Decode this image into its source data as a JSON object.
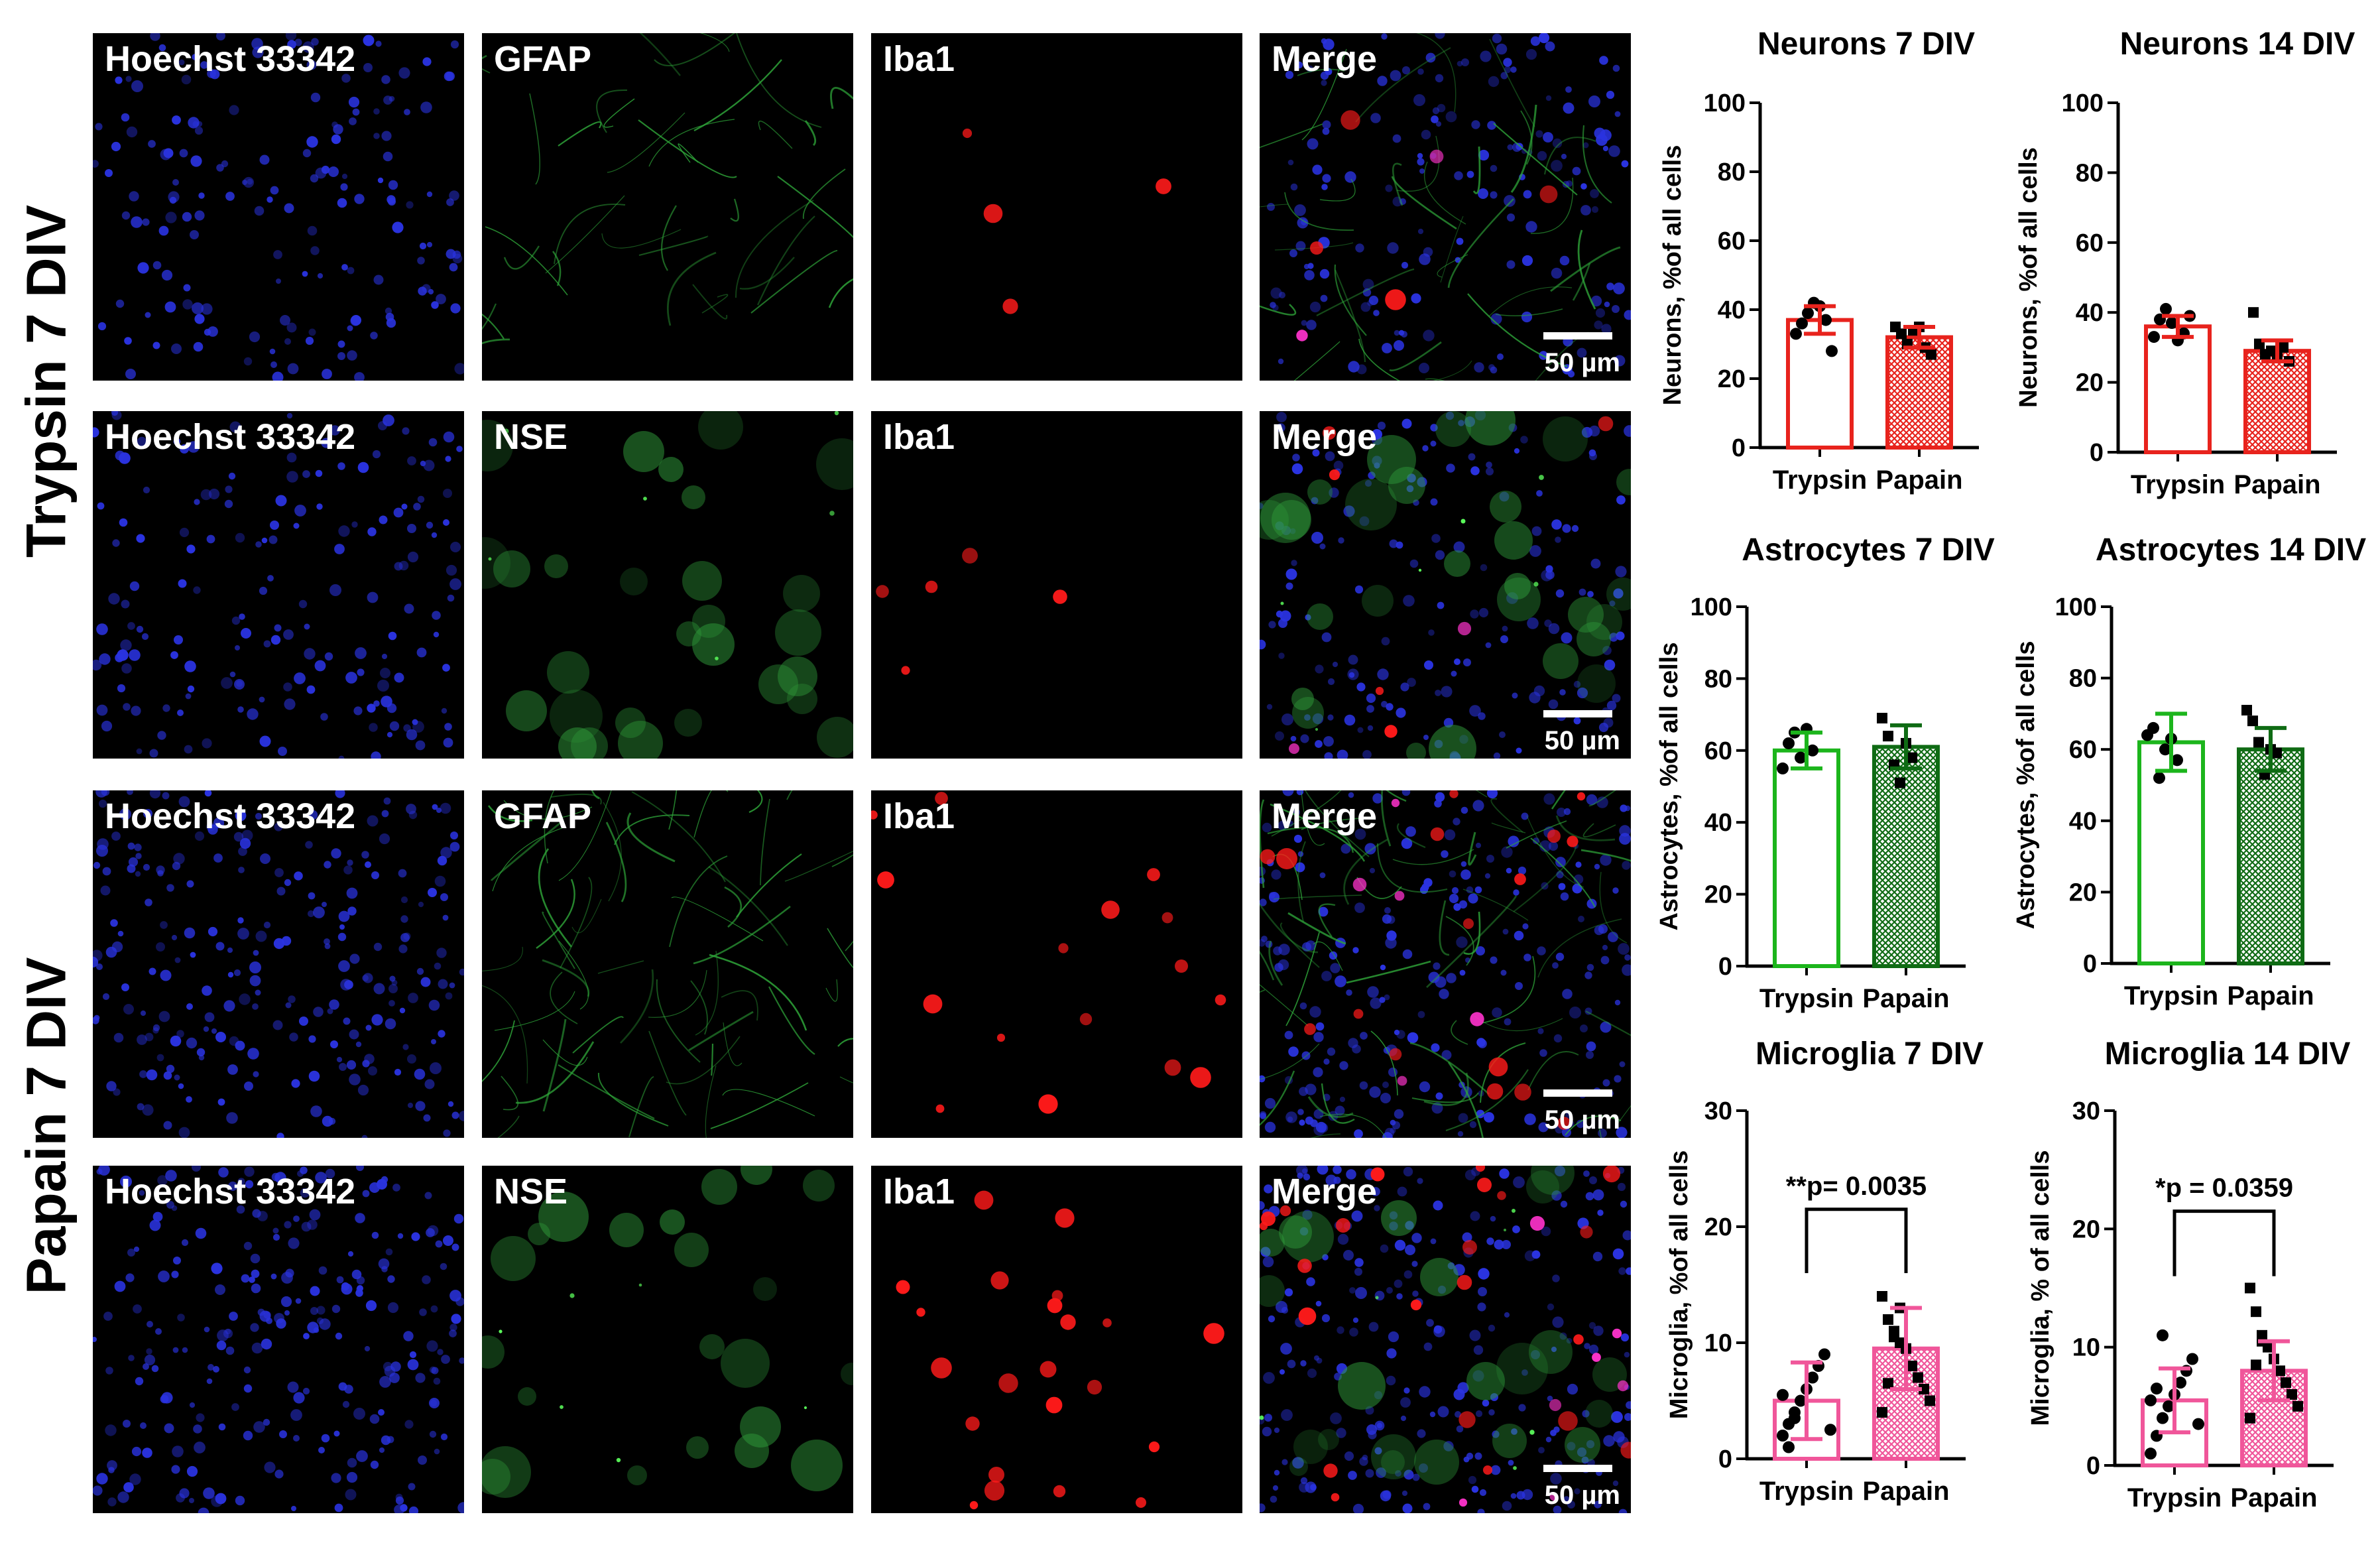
{
  "rows": [
    {
      "label": "Trypsin 7 DIV"
    },
    {
      "label": "Papain 7 DIV"
    }
  ],
  "panel_rows": [
    [
      "Hoechst 33342",
      "GFAP",
      "Iba1",
      "Merge"
    ],
    [
      "Hoechst 33342",
      "NSE",
      "Iba1",
      "Merge"
    ],
    [
      "Hoechst 33342",
      "GFAP",
      "Iba1",
      "Merge"
    ],
    [
      "Hoechst 33342",
      "NSE",
      "Iba1",
      "Merge"
    ]
  ],
  "scale_bar_label": "50 µm",
  "colors": {
    "neurons": "#e8231d",
    "astrocytes": "#1cb51c",
    "astrocytes_dark": "#0f6b14",
    "microglia": "#f0569a"
  },
  "chart_data": [
    {
      "type": "bar",
      "title": "Neurons 7 DIV",
      "ylabel": "Neurons, %of all cells",
      "categories": [
        "Trypsin",
        "Papain"
      ],
      "values": [
        37,
        32
      ],
      "error": [
        4,
        3
      ],
      "ylim": [
        0,
        100
      ],
      "yticks": [
        0,
        20,
        40,
        60,
        80,
        100
      ],
      "points": [
        [
          33,
          36,
          39,
          42,
          41,
          37,
          28
        ],
        [
          35,
          33,
          30,
          34,
          35,
          29,
          27
        ]
      ],
      "color": "neurons"
    },
    {
      "type": "bar",
      "title": "Neurons 14 DIV",
      "ylabel": "Neurons, %of all cells",
      "categories": [
        "Trypsin",
        "Papain"
      ],
      "values": [
        36,
        29
      ],
      "error": [
        3,
        3
      ],
      "ylim": [
        0,
        100
      ],
      "yticks": [
        0,
        20,
        40,
        60,
        80,
        100
      ],
      "points": [
        [
          33,
          38,
          41,
          37,
          32,
          34,
          39
        ],
        [
          40,
          31,
          28,
          29,
          27,
          30,
          26
        ]
      ],
      "color": "neurons"
    },
    {
      "type": "bar",
      "title": "Astrocytes 7 DIV",
      "ylabel": "Astrocytes, %of all cells",
      "categories": [
        "Trypsin",
        "Papain"
      ],
      "values": [
        60,
        61
      ],
      "error": [
        5,
        6
      ],
      "ylim": [
        0,
        100
      ],
      "yticks": [
        0,
        20,
        40,
        60,
        80,
        100
      ],
      "points": [
        [
          55,
          62,
          65,
          58,
          66,
          60
        ],
        [
          69,
          64,
          56,
          51,
          62,
          58
        ]
      ],
      "color": "astrocytes"
    },
    {
      "type": "bar",
      "title": "Astrocytes 14 DIV",
      "ylabel": "Astrocytes, %of all cells",
      "categories": [
        "Trypsin",
        "Papain"
      ],
      "values": [
        62,
        60
      ],
      "error": [
        8,
        6
      ],
      "ylim": [
        0,
        100
      ],
      "yticks": [
        0,
        20,
        40,
        60,
        80,
        100
      ],
      "points": [
        [
          64,
          66,
          52,
          60,
          63,
          57
        ],
        [
          71,
          68,
          62,
          53,
          60,
          59
        ]
      ],
      "color": "astrocytes"
    },
    {
      "type": "bar",
      "title": "Microglia 7 DIV",
      "ylabel": "Microglia, %of all cells",
      "categories": [
        "Trypsin",
        "Papain"
      ],
      "values": [
        5,
        9.5
      ],
      "error": [
        3.3,
        3.5
      ],
      "ylim": [
        0,
        30
      ],
      "yticks": [
        0,
        10,
        20,
        30
      ],
      "points": [
        [
          2,
          3,
          4,
          5,
          6,
          7,
          8,
          9,
          2.5,
          5.5,
          1,
          3.5
        ],
        [
          14,
          12,
          11,
          10,
          9.5,
          8,
          7,
          6,
          5,
          4,
          6.5,
          10.5,
          13
        ]
      ],
      "color": "microglia",
      "annotation": "**p= 0.0035"
    },
    {
      "type": "bar",
      "title": "Microglia 14 DIV",
      "ylabel": "Microglia, % of all cells",
      "categories": [
        "Trypsin",
        "Papain"
      ],
      "values": [
        5.5,
        8
      ],
      "error": [
        2.7,
        2.5
      ],
      "ylim": [
        0,
        30
      ],
      "yticks": [
        0,
        10,
        20,
        30
      ],
      "points": [
        [
          1,
          2.5,
          4,
          5,
          6,
          7,
          8,
          9,
          3.5,
          5.5,
          6.5,
          11
        ],
        [
          15,
          13,
          11,
          10,
          9,
          8,
          7,
          6,
          5,
          4,
          8.5,
          10.5
        ]
      ],
      "color": "microglia",
      "annotation": "*p = 0.0359"
    }
  ]
}
